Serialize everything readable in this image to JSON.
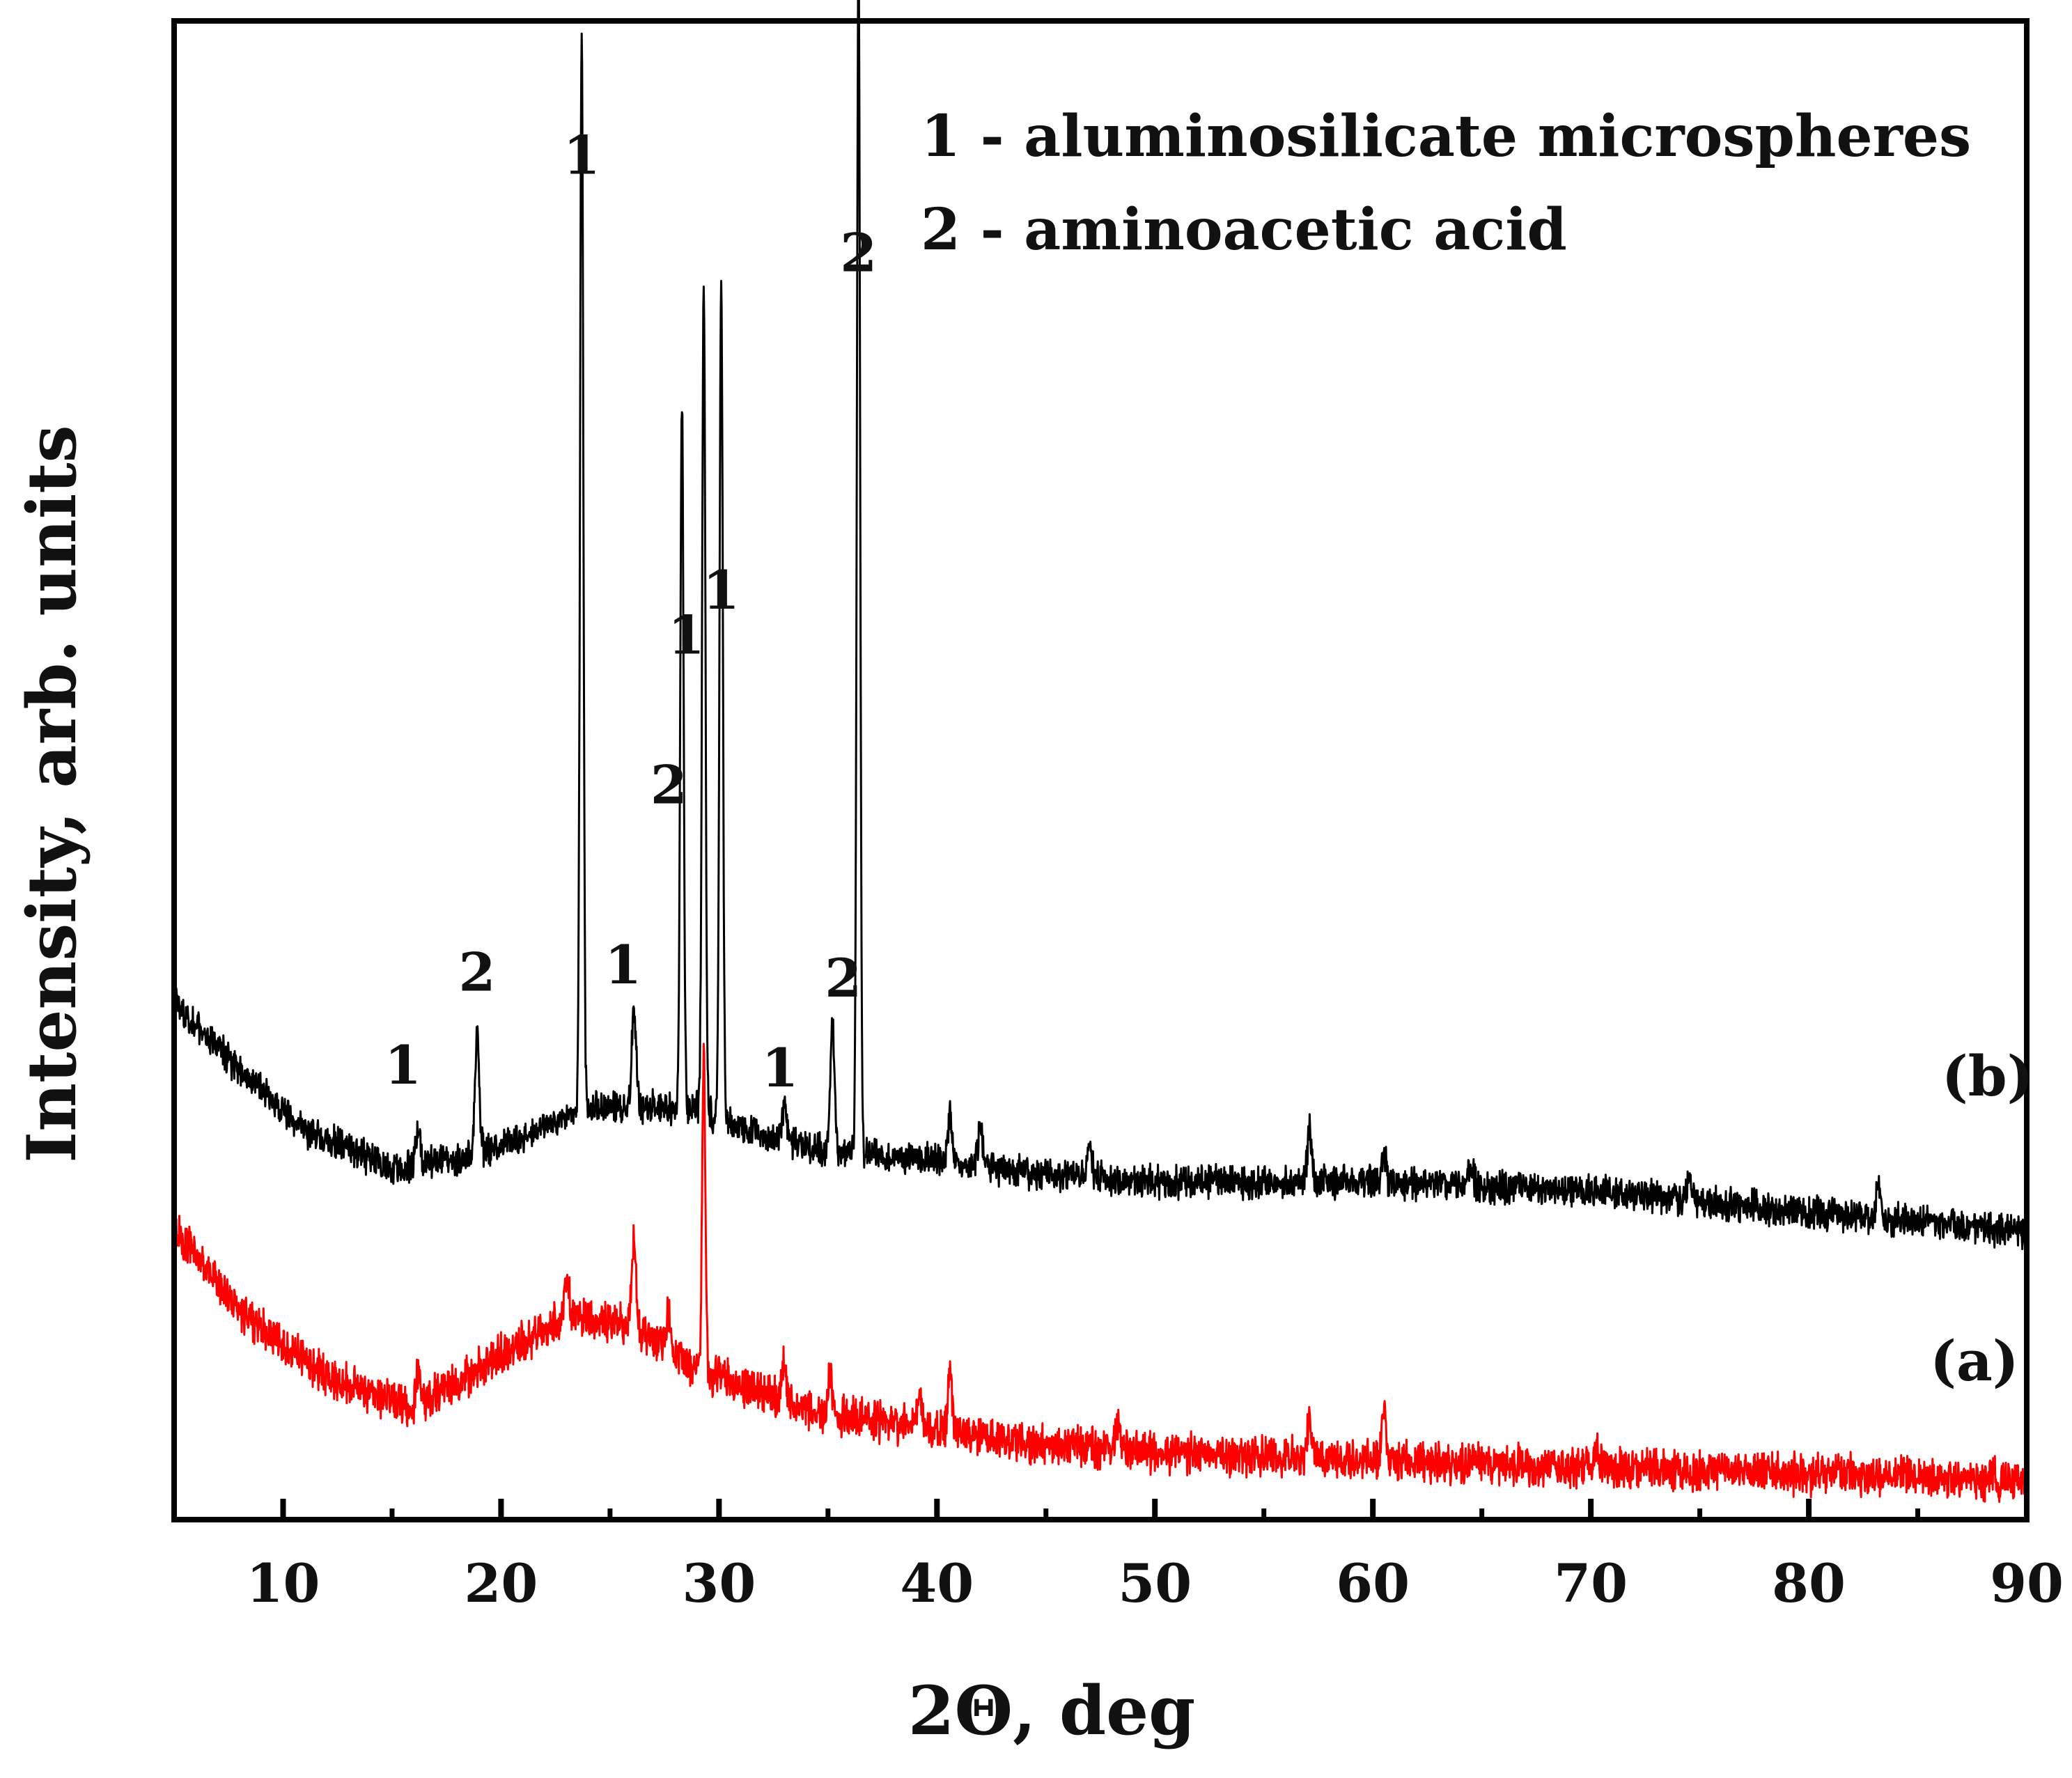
{
  "chart_data": {
    "type": "line",
    "title": "",
    "xlabel": "2Θ, deg",
    "ylabel": "Intensity, arb. units",
    "xlim": [
      5,
      90
    ],
    "ylim": [
      0,
      100
    ],
    "x_ticks_major": [
      10,
      20,
      30,
      40,
      50,
      60,
      70,
      80,
      90
    ],
    "x_tick_labels": [
      "10",
      "20",
      "30",
      "40",
      "50",
      "60",
      "70",
      "80",
      "90"
    ],
    "x_ticks_minor": [
      15,
      25,
      35,
      45,
      55,
      65,
      75,
      85
    ],
    "y_ticks": [],
    "grid": false,
    "legend": {
      "placement": "top-right",
      "entries": [
        "1 - aluminosilicate microspheres",
        "2 - aminoacetic acid"
      ]
    },
    "series": [
      {
        "name": "(a)",
        "label": "(a)",
        "color": "#ff0000",
        "baseline": [
          [
            5,
            19.5
          ],
          [
            8,
            14
          ],
          [
            12,
            9.5
          ],
          [
            16,
            7.5
          ],
          [
            20,
            11
          ],
          [
            23,
            13.5
          ],
          [
            26,
            13
          ],
          [
            28,
            11
          ],
          [
            30,
            9.5
          ],
          [
            35,
            7
          ],
          [
            40,
            6
          ],
          [
            45,
            5
          ],
          [
            50,
            4.5
          ],
          [
            60,
            4
          ],
          [
            70,
            3.5
          ],
          [
            80,
            3
          ],
          [
            90,
            2.7
          ]
        ],
        "peaks": [
          [
            16.2,
            2.5
          ],
          [
            23,
            3
          ],
          [
            26.1,
            6
          ],
          [
            27.7,
            2.5
          ],
          [
            29.3,
            20.5
          ],
          [
            33,
            2.5
          ],
          [
            35.1,
            2.5
          ],
          [
            39.2,
            2.5
          ],
          [
            40.6,
            3.5
          ],
          [
            48.3,
            2
          ],
          [
            57.1,
            2.5
          ],
          [
            60.5,
            3.5
          ],
          [
            70.3,
            1.5
          ]
        ],
        "noise": 2.0,
        "label_x": 87.6,
        "label_y": 10.5
      },
      {
        "name": "(b)",
        "label": "(b)",
        "color": "#000000",
        "baseline": [
          [
            5,
            34.5
          ],
          [
            8,
            30
          ],
          [
            11,
            26
          ],
          [
            15,
            23.5
          ],
          [
            18,
            24
          ],
          [
            21,
            25.5
          ],
          [
            23,
            27
          ],
          [
            25,
            27.5
          ],
          [
            27,
            27.5
          ],
          [
            29,
            27.5
          ],
          [
            31,
            26
          ],
          [
            35,
            24.5
          ],
          [
            40,
            24
          ],
          [
            45,
            23
          ],
          [
            50,
            22.5
          ],
          [
            60,
            22.5
          ],
          [
            70,
            22
          ],
          [
            80,
            20.5
          ],
          [
            90,
            19.2
          ]
        ],
        "peaks": [
          [
            16.2,
            2.5
          ],
          [
            18.9,
            8
          ],
          [
            23.7,
            72.5
          ],
          [
            26.1,
            6.5
          ],
          [
            28.3,
            47
          ],
          [
            29.3,
            55
          ],
          [
            30.1,
            56.5
          ],
          [
            33,
            2.5
          ],
          [
            35.2,
            8.5
          ],
          [
            36.4,
            80
          ],
          [
            40.6,
            3
          ],
          [
            42,
            2.5
          ],
          [
            47,
            2.5
          ],
          [
            57.1,
            3.5
          ],
          [
            60.5,
            2
          ],
          [
            64.5,
            1.5
          ],
          [
            74.5,
            1.5
          ],
          [
            83.2,
            2.5
          ]
        ],
        "noise": 1.6,
        "label_x": 88.2,
        "label_y": 29.5
      }
    ],
    "annotations": [
      {
        "text": "1",
        "x": 23.7,
        "y": 91
      },
      {
        "text": "2",
        "x": 36.4,
        "y": 84.5
      },
      {
        "text": "1",
        "x": 30.1,
        "y": 62
      },
      {
        "text": "1",
        "x": 28.5,
        "y": 59
      },
      {
        "text": "2",
        "x": 27.7,
        "y": 49
      },
      {
        "text": "1",
        "x": 25.6,
        "y": 37
      },
      {
        "text": "2",
        "x": 18.9,
        "y": 36.5
      },
      {
        "text": "1",
        "x": 15.5,
        "y": 30.3
      },
      {
        "text": "2",
        "x": 35.7,
        "y": 36.1
      },
      {
        "text": "1",
        "x": 32.8,
        "y": 30.1
      }
    ]
  }
}
